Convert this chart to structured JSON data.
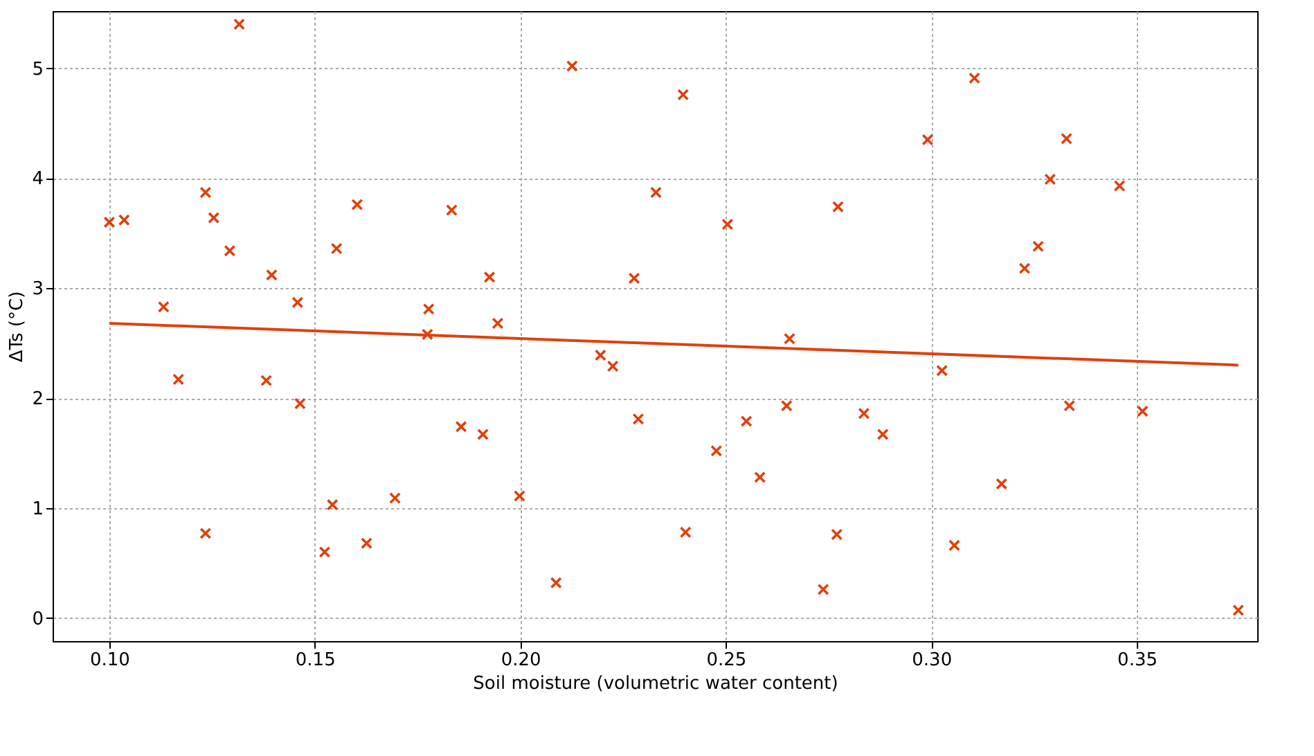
{
  "chart_data": {
    "type": "scatter",
    "xlabel": "Soil moisture (volumetric water content)",
    "ylabel": "ΔTs (°C)",
    "xlim": [
      0.0862,
      0.3793
    ],
    "ylim": [
      -0.21,
      5.52
    ],
    "xticks": [
      {
        "value": 0.1,
        "label": "0.10"
      },
      {
        "value": 0.15,
        "label": "0.15"
      },
      {
        "value": 0.2,
        "label": "0.20"
      },
      {
        "value": 0.25,
        "label": "0.25"
      },
      {
        "value": 0.3,
        "label": "0.30"
      },
      {
        "value": 0.35,
        "label": "0.35"
      }
    ],
    "yticks": [
      0,
      1,
      2,
      3,
      4,
      5
    ],
    "grid": true,
    "series": [
      {
        "type": "scatter",
        "marker": "cross",
        "color": "#e0400c",
        "x": [
          0.1,
          0.1036,
          0.1132,
          0.1168,
          0.1234,
          0.1234,
          0.1254,
          0.1293,
          0.1316,
          0.1395,
          0.1382,
          0.1458,
          0.1464,
          0.1524,
          0.1543,
          0.1553,
          0.1603,
          0.1626,
          0.1695,
          0.1777,
          0.1774,
          0.1833,
          0.1856,
          0.1925,
          0.1909,
          0.1945,
          0.1998,
          0.2087,
          0.2126,
          0.2195,
          0.2225,
          0.2277,
          0.2287,
          0.233,
          0.2396,
          0.2402,
          0.2477,
          0.2504,
          0.255,
          0.2583,
          0.2655,
          0.2648,
          0.2737,
          0.2773,
          0.277,
          0.2836,
          0.2882,
          0.2991,
          0.3026,
          0.3056,
          0.3105,
          0.3171,
          0.3227,
          0.326,
          0.3289,
          0.3329,
          0.3336,
          0.3458,
          0.3514,
          0.3747
        ],
        "values": [
          3.6,
          3.62,
          2.83,
          2.17,
          3.87,
          0.77,
          3.64,
          3.34,
          5.4,
          3.12,
          2.16,
          2.87,
          1.95,
          0.6,
          1.03,
          3.36,
          3.76,
          0.68,
          1.09,
          2.81,
          2.58,
          3.71,
          1.74,
          3.1,
          1.67,
          2.68,
          1.11,
          0.32,
          5.02,
          2.39,
          2.29,
          3.09,
          1.81,
          3.87,
          4.76,
          0.78,
          1.52,
          3.58,
          1.79,
          1.28,
          2.54,
          1.93,
          0.26,
          3.74,
          0.76,
          1.86,
          1.67,
          4.35,
          2.25,
          0.66,
          4.91,
          1.22,
          3.18,
          3.38,
          3.99,
          4.36,
          1.93,
          3.93,
          1.88,
          0.07
        ]
      },
      {
        "type": "line",
        "marker": "none",
        "line_style": "solid",
        "color": "#e0400c",
        "x": [
          0.1,
          0.3747
        ],
        "values": [
          2.68,
          2.3
        ]
      }
    ]
  }
}
